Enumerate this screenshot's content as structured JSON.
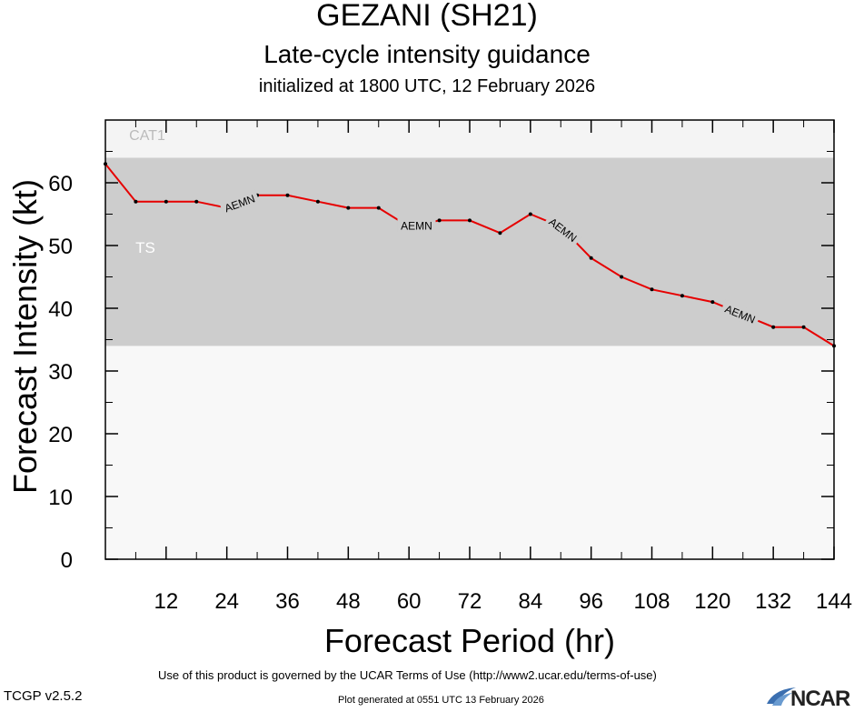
{
  "header": {
    "title": "GEZANI (SH21)",
    "subtitle": "Late-cycle intensity guidance",
    "initialized": "initialized at 1800 UTC, 12 February 2026"
  },
  "footer": {
    "terms": "Use of this product is governed by the UCAR Terms of Use (http://www2.ucar.edu/terms-of-use)",
    "version": "TCGP v2.5.2",
    "generated": "Plot generated at 0551 UTC   13 February 2026",
    "logo": "NCAR"
  },
  "colors": {
    "plot_background": "#f8f8f8",
    "ts_band": "#cdcdcd",
    "cat1_band": "#f4f4f4",
    "series_line": "#e60000",
    "points": "#000000"
  },
  "chart_data": {
    "type": "line",
    "xlabel": "Forecast Period (hr)",
    "ylabel": "Forecast Intensity (kt)",
    "xlim": [
      0,
      144
    ],
    "ylim": [
      0,
      70
    ],
    "x_ticks": [
      12,
      24,
      36,
      48,
      60,
      72,
      84,
      96,
      108,
      120,
      132,
      144
    ],
    "y_ticks": [
      0,
      10,
      20,
      30,
      40,
      50,
      60
    ],
    "grid": false,
    "bands": [
      {
        "label": "TS",
        "y_from": 34,
        "y_to": 64
      },
      {
        "label": "CAT1",
        "y_from": 64,
        "y_to": 70
      }
    ],
    "series": [
      {
        "name": "AEMN",
        "x": [
          0,
          6,
          12,
          18,
          24,
          30,
          36,
          42,
          48,
          54,
          60,
          66,
          72,
          78,
          84,
          90,
          96,
          102,
          108,
          114,
          120,
          126,
          132,
          138,
          144
        ],
        "y": [
          63,
          57,
          57,
          57,
          56,
          58,
          58,
          57,
          56,
          56,
          53,
          54,
          54,
          52,
          55,
          53,
          48,
          45,
          43,
          42,
          41,
          39,
          37,
          37,
          34
        ]
      }
    ],
    "series_labels_at_x": [
      26.5,
      61.5,
      90.5,
      125.5
    ]
  }
}
